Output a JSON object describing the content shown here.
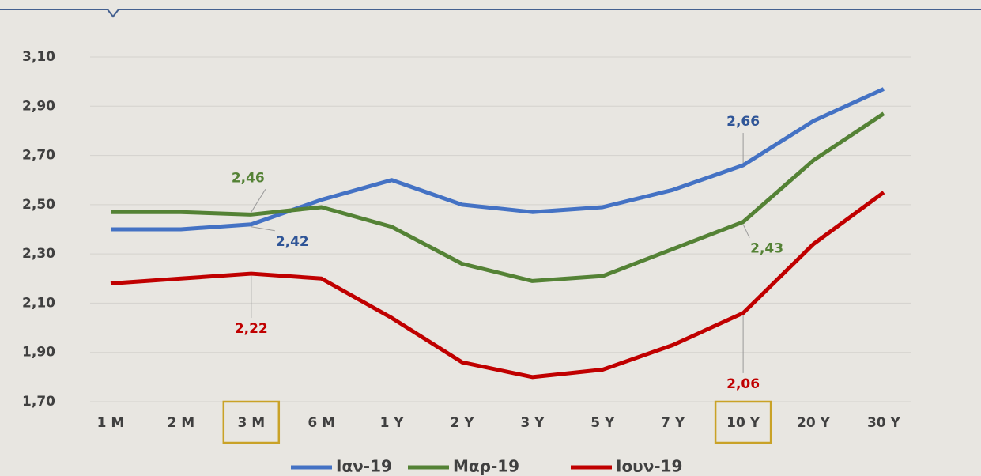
{
  "chart_data": {
    "type": "line",
    "categories": [
      "1 M",
      "2 M",
      "3 M",
      "6 M",
      "1 Y",
      "2 Y",
      "3 Y",
      "5 Y",
      "7 Y",
      "10 Y",
      "20 Y",
      "30 Y"
    ],
    "series": [
      {
        "name": "Ιαν-19",
        "color": "#4472c4",
        "values": [
          2.4,
          2.4,
          2.42,
          2.52,
          2.6,
          2.5,
          2.47,
          2.49,
          2.56,
          2.66,
          2.84,
          2.97
        ],
        "value_labels": [
          null,
          null,
          "2,42",
          null,
          null,
          null,
          null,
          null,
          null,
          "2,66",
          null,
          null
        ],
        "label_color": "#2f5597"
      },
      {
        "name": "Μαρ-19",
        "color": "#548235",
        "values": [
          2.47,
          2.47,
          2.46,
          2.49,
          2.41,
          2.26,
          2.19,
          2.21,
          2.32,
          2.43,
          2.68,
          2.87
        ],
        "value_labels": [
          null,
          null,
          "2,46",
          null,
          null,
          null,
          null,
          null,
          null,
          "2,43",
          null,
          null
        ],
        "label_color": "#548235"
      },
      {
        "name": "Ιουν-19",
        "color": "#c00000",
        "values": [
          2.18,
          2.2,
          2.22,
          2.2,
          2.04,
          1.86,
          1.8,
          1.83,
          1.93,
          2.06,
          2.34,
          2.55
        ],
        "value_labels": [
          null,
          null,
          "2,22",
          null,
          null,
          null,
          null,
          null,
          null,
          "2,06",
          null,
          null
        ],
        "label_color": "#c00000"
      }
    ],
    "ylim": [
      1.7,
      3.1
    ],
    "yticks": [
      {
        "value": 1.7,
        "label": "1,70"
      },
      {
        "value": 1.9,
        "label": "1,90"
      },
      {
        "value": 2.1,
        "label": "2,10"
      },
      {
        "value": 2.3,
        "label": "2,30"
      },
      {
        "value": 2.5,
        "label": "2,50"
      },
      {
        "value": 2.7,
        "label": "2,70"
      },
      {
        "value": 2.9,
        "label": "2,90"
      },
      {
        "value": 3.1,
        "label": "3,10"
      }
    ],
    "grid": true,
    "highlight": [
      2,
      9
    ],
    "highlight_color": "#c9a227",
    "legend": "bottom"
  }
}
